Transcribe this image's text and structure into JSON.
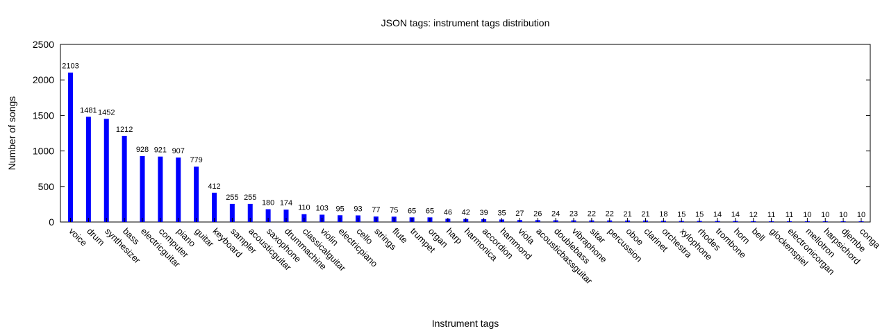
{
  "chart_data": {
    "type": "bar",
    "title": "JSON tags: instrument tags distribution",
    "xlabel": "Instrument tags",
    "ylabel": "Number of songs",
    "ylim": [
      0,
      2500
    ],
    "yticks": [
      0,
      500,
      1000,
      1500,
      2000,
      2500
    ],
    "grid": false,
    "bar_color": "#0000ff",
    "categories": [
      "voice",
      "drum",
      "synthesizer",
      "bass",
      "electricguitar",
      "computer",
      "piano",
      "guitar",
      "keyboard",
      "sampler",
      "acousticguitar",
      "saxophone",
      "drummachine",
      "classicalguitar",
      "violin",
      "electricpiano",
      "cello",
      "strings",
      "flute",
      "trumpet",
      "organ",
      "harp",
      "harmonica",
      "accordion",
      "hammond",
      "viola",
      "acousticbassguitar",
      "doublebass",
      "vibraphone",
      "sitar",
      "percussion",
      "oboe",
      "clarinet",
      "orchestra",
      "xylophone",
      "rhodes",
      "trombone",
      "horn",
      "bell",
      "glockenspiel",
      "electronicorgan",
      "mellotron",
      "harpsichord",
      "djembe",
      "conga"
    ],
    "values": [
      2103,
      1481,
      1452,
      1212,
      928,
      921,
      907,
      779,
      412,
      255,
      255,
      180,
      174,
      110,
      103,
      95,
      93,
      77,
      75,
      65,
      65,
      46,
      42,
      39,
      35,
      27,
      26,
      24,
      23,
      22,
      22,
      21,
      21,
      18,
      15,
      15,
      14,
      14,
      12,
      11,
      11,
      10,
      10,
      10,
      10
    ]
  }
}
